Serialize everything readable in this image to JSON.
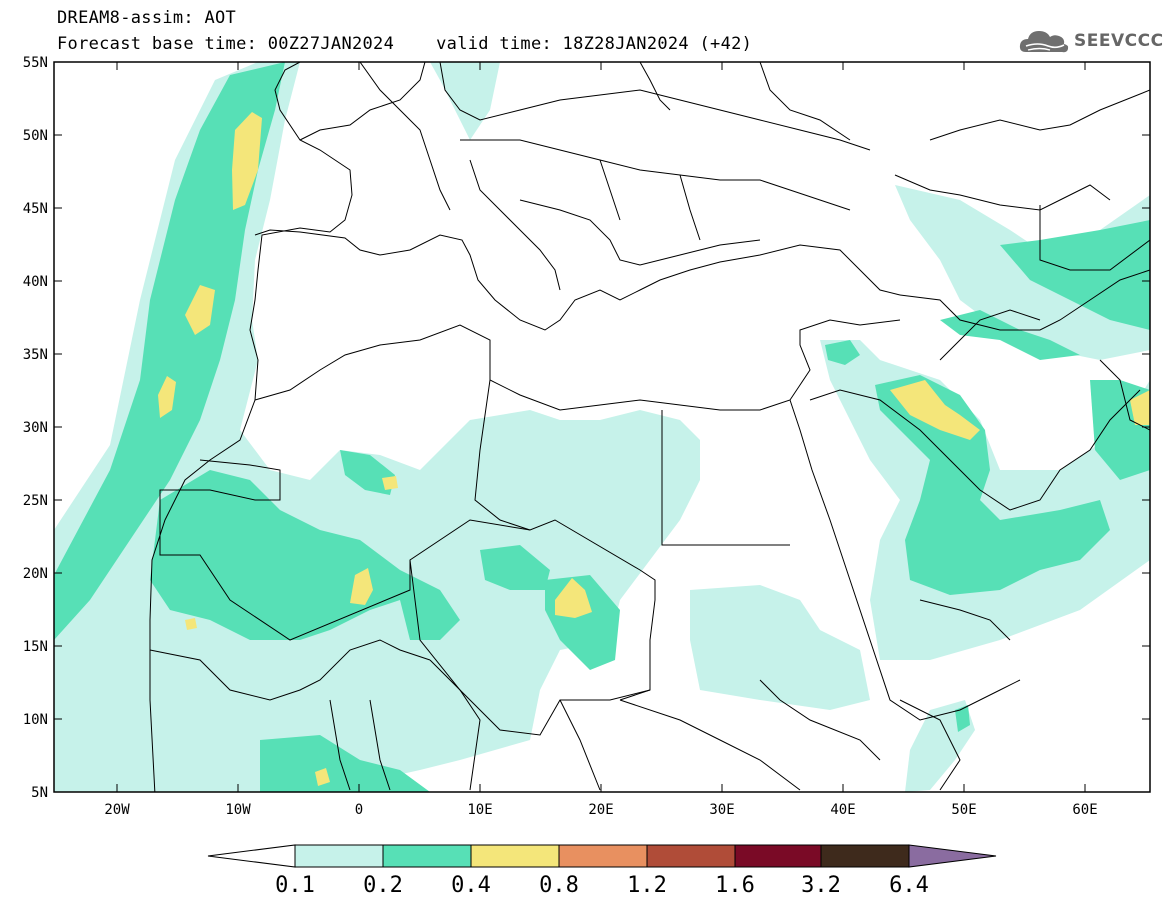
{
  "header": {
    "model_line": "DREAM8-assim: AOT",
    "base_time": "Forecast base time: 00Z27JAN2024",
    "valid_time": "valid time: 18Z28JAN2024 (+42)"
  },
  "logo": {
    "text": "SEEVCCC",
    "icon": "cloud-icon"
  },
  "map": {
    "lon_range": [
      -25,
      65
    ],
    "lat_range": [
      5,
      55
    ],
    "y_ticks": [
      "55N",
      "50N",
      "45N",
      "40N",
      "35N",
      "30N",
      "25N",
      "20N",
      "15N",
      "10N",
      "5N"
    ],
    "x_ticks": [
      "20W",
      "10W",
      "0",
      "10E",
      "20E",
      "30E",
      "40E",
      "50E",
      "60E"
    ]
  },
  "colorbar": {
    "labels": [
      "0.1",
      "0.2",
      "0.4",
      "0.8",
      "1.2",
      "1.6",
      "3.2",
      "6.4"
    ],
    "colors": [
      "#ffffff",
      "#c6f2ea",
      "#57e0b6",
      "#f4e67a",
      "#e89060",
      "#b04c38",
      "#7a0a26",
      "#3e2a1c",
      "#8a6ca0"
    ]
  }
}
